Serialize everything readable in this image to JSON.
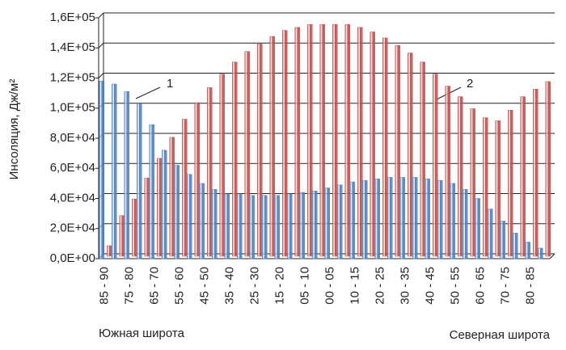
{
  "chart_data": {
    "type": "bar",
    "y_label": "Инсоляция, Дж/м²",
    "x_label_left": "Южная широта",
    "x_label_right": "Северная широта",
    "categories": [
      "85 - 90",
      null,
      "75 - 80",
      null,
      "65 - 70",
      null,
      "55 - 60",
      null,
      "45 - 50",
      null,
      "35 - 40",
      null,
      "25 - 30",
      null,
      "15 - 20",
      null,
      "05 - 10",
      null,
      "00 - 05",
      null,
      "10 - 15",
      null,
      "20 - 25",
      null,
      "30 - 35",
      null,
      "40 - 45",
      null,
      "50 - 55",
      null,
      "60 - 65",
      null,
      "70 - 75",
      null,
      "80 - 85",
      null
    ],
    "series": [
      {
        "name": "1",
        "color": "#4f81bd",
        "values": [
          118000,
          116000,
          111000,
          103000,
          89000,
          72000,
          62000,
          56000,
          50000,
          46000,
          43000,
          43000,
          42000,
          42000,
          42000,
          43000,
          44000,
          45000,
          47000,
          49000,
          51000,
          52000,
          53000,
          54000,
          54000,
          54000,
          53000,
          52000,
          50000,
          46000,
          40000,
          33000,
          25000,
          17000,
          11000,
          7000
        ]
      },
      {
        "name": "2",
        "color": "#c0504d",
        "values": [
          7000,
          27000,
          38000,
          52000,
          65000,
          79000,
          91000,
          102000,
          112000,
          121000,
          129000,
          136000,
          141000,
          146000,
          150000,
          152000,
          154000,
          154000,
          154000,
          154000,
          152000,
          149000,
          145000,
          140000,
          135000,
          129000,
          121000,
          113000,
          106000,
          98000,
          92000,
          90000,
          97000,
          106000,
          111000,
          116000
        ]
      }
    ],
    "ylim": [
      0,
      160000
    ],
    "yticks": [
      {
        "value": 0,
        "label": "0,0E+00"
      },
      {
        "value": 20000,
        "label": "2,0E+04"
      },
      {
        "value": 40000,
        "label": "4,0E+04"
      },
      {
        "value": 60000,
        "label": "6,0E+04"
      },
      {
        "value": 80000,
        "label": "8,0E+04"
      },
      {
        "value": 100000,
        "label": "1,0E+05"
      },
      {
        "value": 120000,
        "label": "1,2E+05"
      },
      {
        "value": 140000,
        "label": "1,4E+05"
      },
      {
        "value": 160000,
        "label": "1,6E+05"
      }
    ],
    "grid": true
  }
}
